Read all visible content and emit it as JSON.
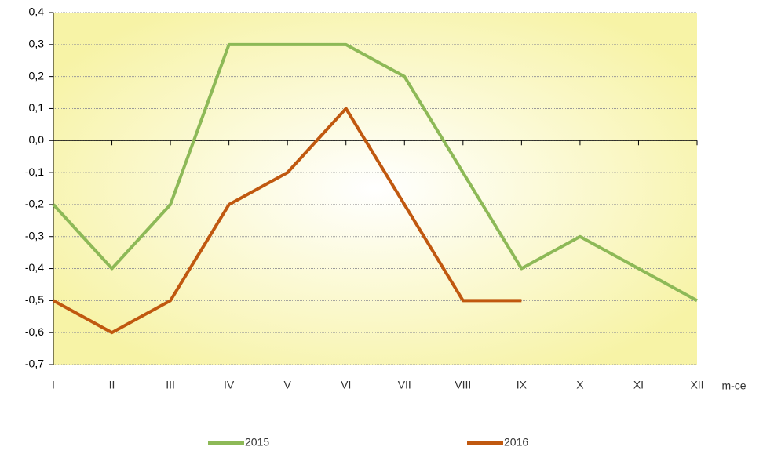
{
  "chart_data": {
    "type": "line",
    "categories": [
      "I",
      "II",
      "III",
      "IV",
      "V",
      "VI",
      "VII",
      "VIII",
      "IX",
      "X",
      "XI",
      "XII"
    ],
    "x_label": "m-ce",
    "series": [
      {
        "name": "2015",
        "color": "#8db957",
        "values": [
          -0.2,
          -0.4,
          -0.2,
          0.3,
          0.3,
          0.3,
          0.2,
          -0.1,
          -0.4,
          -0.3,
          -0.4,
          -0.5
        ]
      },
      {
        "name": "2016",
        "color": "#c0580f",
        "values": [
          -0.5,
          -0.6,
          -0.5,
          -0.2,
          -0.1,
          0.1,
          -0.2,
          -0.5,
          -0.5,
          null,
          null,
          null
        ]
      }
    ],
    "ylim": [
      -0.7,
      0.4
    ],
    "yticks": [
      {
        "value": -0.7,
        "label": "-0,7"
      },
      {
        "value": -0.6,
        "label": "-0,6"
      },
      {
        "value": -0.5,
        "label": "-0,5"
      },
      {
        "value": -0.4,
        "label": "-0,4"
      },
      {
        "value": -0.3,
        "label": "-0,3"
      },
      {
        "value": -0.2,
        "label": "-0,2"
      },
      {
        "value": -0.1,
        "label": "-0,1"
      },
      {
        "value": 0,
        "label": "0,0"
      },
      {
        "value": 0.1,
        "label": "0,1"
      },
      {
        "value": 0.2,
        "label": "0,2"
      },
      {
        "value": 0.3,
        "label": "0,3"
      },
      {
        "value": 0.4,
        "label": "0,4"
      }
    ],
    "grid": true,
    "legend": "bottom"
  }
}
